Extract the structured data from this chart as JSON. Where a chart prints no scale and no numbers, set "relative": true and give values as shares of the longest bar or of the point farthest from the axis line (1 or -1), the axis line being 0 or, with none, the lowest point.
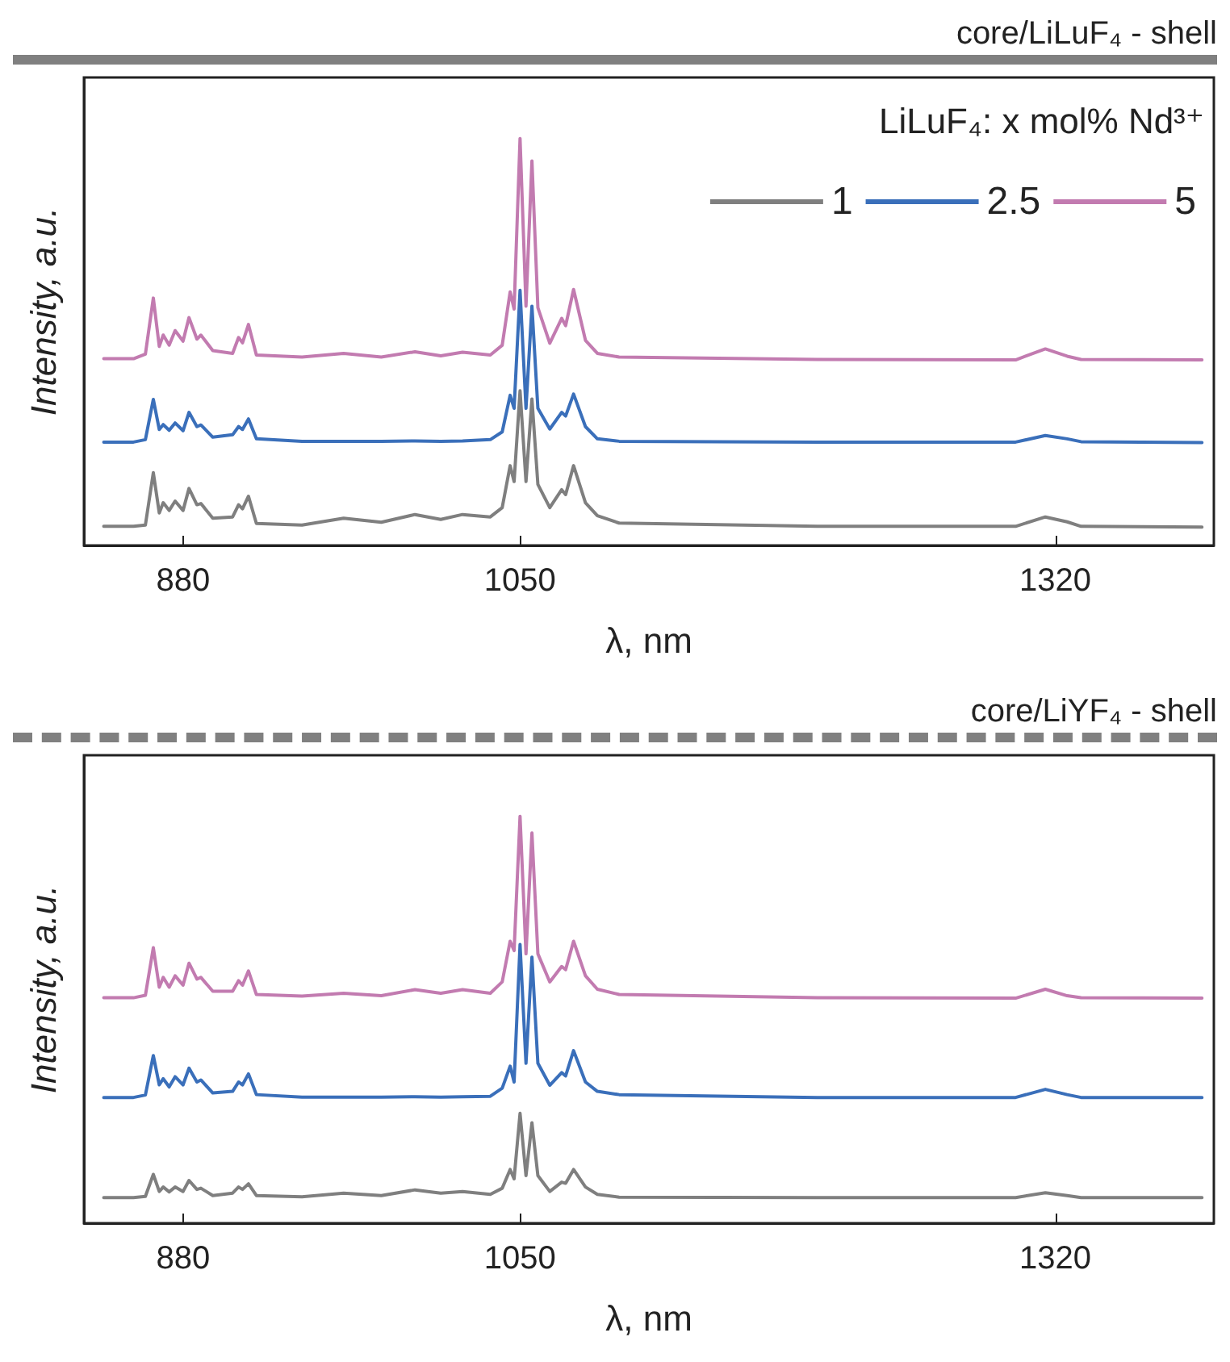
{
  "chart_data": [
    {
      "type": "line",
      "title": "core/LiLuF₄ - shell",
      "xlabel": "λ, nm",
      "ylabel": "Intensity, a.u.",
      "legend_title": "LiLuF₄: x mol% Nd³⁺",
      "relative": true,
      "xlim": [
        830,
        1400
      ],
      "xticks": [
        880,
        1050,
        1320
      ],
      "grid": false,
      "legend": "top right",
      "marker": "none",
      "line_style": "solid",
      "x": [
        840,
        855,
        861,
        865,
        868,
        870,
        873,
        876,
        880,
        883,
        887,
        889,
        895,
        905,
        908,
        910,
        913,
        917,
        940,
        961,
        980,
        997,
        1010,
        1021,
        1035,
        1041,
        1045,
        1047,
        1050,
        1053,
        1056,
        1059,
        1065,
        1071,
        1073,
        1077,
        1083,
        1089,
        1100,
        1200,
        1300,
        1315,
        1326,
        1333,
        1394
      ],
      "series": [
        {
          "name": "1",
          "color": "#7f7f7f",
          "values": [
            0.047,
            0.047,
            0.05,
            0.179,
            0.08,
            0.105,
            0.086,
            0.109,
            0.086,
            0.14,
            0.1,
            0.103,
            0.067,
            0.07,
            0.1,
            0.09,
            0.121,
            0.054,
            0.05,
            0.067,
            0.057,
            0.076,
            0.064,
            0.076,
            0.07,
            0.093,
            0.196,
            0.157,
            0.38,
            0.157,
            0.36,
            0.15,
            0.093,
            0.137,
            0.125,
            0.196,
            0.105,
            0.073,
            0.055,
            0.047,
            0.047,
            0.07,
            0.058,
            0.047,
            0.045
          ]
        },
        {
          "name": "2.5",
          "color": "#3a6fba",
          "values": [
            0.254,
            0.254,
            0.26,
            0.359,
            0.285,
            0.297,
            0.283,
            0.301,
            0.282,
            0.327,
            0.292,
            0.296,
            0.266,
            0.272,
            0.292,
            0.285,
            0.311,
            0.262,
            0.256,
            0.256,
            0.256,
            0.257,
            0.256,
            0.257,
            0.26,
            0.279,
            0.369,
            0.337,
            0.627,
            0.337,
            0.588,
            0.337,
            0.286,
            0.327,
            0.318,
            0.372,
            0.292,
            0.262,
            0.256,
            0.254,
            0.254,
            0.27,
            0.262,
            0.255,
            0.253
          ]
        },
        {
          "name": "5",
          "color": "#c27bb0",
          "values": [
            0.459,
            0.459,
            0.47,
            0.608,
            0.489,
            0.517,
            0.492,
            0.528,
            0.502,
            0.56,
            0.507,
            0.517,
            0.479,
            0.472,
            0.511,
            0.498,
            0.543,
            0.468,
            0.463,
            0.472,
            0.463,
            0.476,
            0.466,
            0.475,
            0.468,
            0.492,
            0.623,
            0.581,
            1,
            0.588,
            0.945,
            0.584,
            0.497,
            0.558,
            0.54,
            0.629,
            0.504,
            0.472,
            0.463,
            0.457,
            0.456,
            0.483,
            0.465,
            0.457,
            0.456
          ]
        }
      ]
    },
    {
      "type": "line",
      "title": "core/LiYF₄ - shell",
      "xlabel": "λ, nm",
      "ylabel": "Intensity, a.u.",
      "relative": true,
      "xlim": [
        830,
        1400
      ],
      "xticks": [
        880,
        1050,
        1320
      ],
      "grid": false,
      "marker": "none",
      "line_style": "solid",
      "x": [
        840,
        855,
        861,
        865,
        868,
        870,
        873,
        876,
        880,
        883,
        887,
        889,
        895,
        905,
        908,
        910,
        913,
        917,
        940,
        961,
        980,
        997,
        1010,
        1021,
        1035,
        1041,
        1045,
        1047,
        1050,
        1053,
        1056,
        1059,
        1065,
        1071,
        1073,
        1077,
        1083,
        1089,
        1100,
        1200,
        1300,
        1315,
        1326,
        1333,
        1394
      ],
      "series": [
        {
          "color": "#7f7f7f",
          "values": [
            0.063,
            0.063,
            0.066,
            0.12,
            0.078,
            0.089,
            0.077,
            0.089,
            0.078,
            0.105,
            0.083,
            0.086,
            0.068,
            0.074,
            0.089,
            0.083,
            0.097,
            0.068,
            0.065,
            0.074,
            0.068,
            0.082,
            0.074,
            0.078,
            0.071,
            0.086,
            0.132,
            0.109,
            0.27,
            0.117,
            0.247,
            0.117,
            0.078,
            0.101,
            0.098,
            0.132,
            0.089,
            0.071,
            0.064,
            0.063,
            0.063,
            0.075,
            0.068,
            0.063,
            0.063
          ]
        },
        {
          "color": "#3a6fba",
          "values": [
            0.309,
            0.309,
            0.315,
            0.412,
            0.34,
            0.355,
            0.335,
            0.36,
            0.34,
            0.381,
            0.347,
            0.352,
            0.32,
            0.324,
            0.347,
            0.34,
            0.367,
            0.316,
            0.31,
            0.31,
            0.31,
            0.311,
            0.31,
            0.311,
            0.312,
            0.332,
            0.386,
            0.347,
            0.685,
            0.393,
            0.654,
            0.393,
            0.339,
            0.37,
            0.362,
            0.424,
            0.347,
            0.324,
            0.316,
            0.309,
            0.309,
            0.329,
            0.316,
            0.309,
            0.309
          ]
        },
        {
          "color": "#c27bb0",
          "values": [
            0.554,
            0.554,
            0.56,
            0.677,
            0.58,
            0.604,
            0.58,
            0.608,
            0.585,
            0.639,
            0.6,
            0.604,
            0.57,
            0.57,
            0.596,
            0.585,
            0.62,
            0.562,
            0.558,
            0.565,
            0.559,
            0.574,
            0.565,
            0.574,
            0.565,
            0.593,
            0.693,
            0.67,
            1,
            0.662,
            0.959,
            0.662,
            0.593,
            0.631,
            0.623,
            0.693,
            0.608,
            0.575,
            0.562,
            0.554,
            0.553,
            0.575,
            0.559,
            0.554,
            0.553
          ]
        }
      ]
    }
  ]
}
